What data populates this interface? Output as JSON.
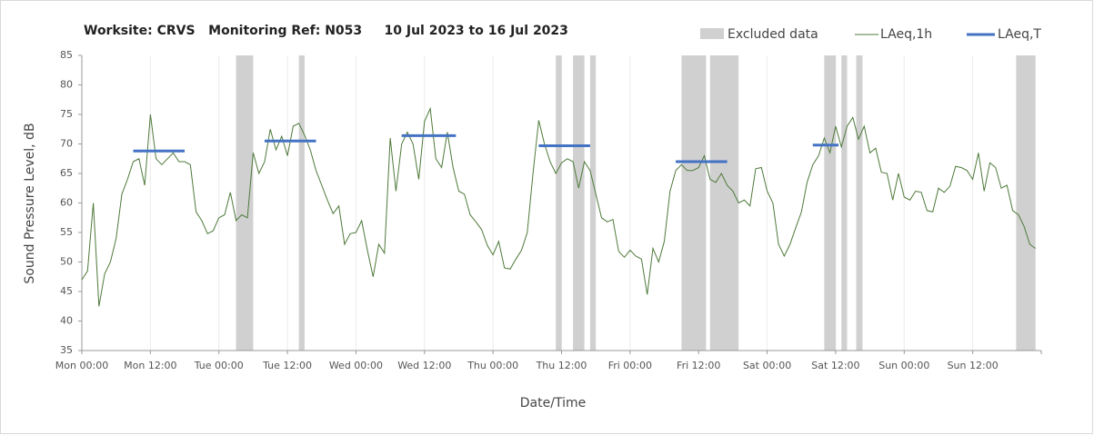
{
  "chart_data": {
    "type": "line",
    "title": "Worksite: CRVS   Monitoring Ref: N053     10 Jul 2023 to 16 Jul 2023",
    "x_label": "Date/Time",
    "y_label": "Sound Pressure Level, dB",
    "xlim": [
      0,
      168
    ],
    "ylim": [
      35,
      85
    ],
    "xticks": [
      {
        "value": 0,
        "label": "Mon 00:00"
      },
      {
        "value": 12,
        "label": "Mon 12:00"
      },
      {
        "value": 24,
        "label": "Tue 00:00"
      },
      {
        "value": 36,
        "label": "Tue 12:00"
      },
      {
        "value": 48,
        "label": "Wed 00:00"
      },
      {
        "value": 60,
        "label": "Wed 12:00"
      },
      {
        "value": 72,
        "label": "Thu 00:00"
      },
      {
        "value": 84,
        "label": "Thu 12:00"
      },
      {
        "value": 96,
        "label": "Fri 00:00"
      },
      {
        "value": 108,
        "label": "Fri 12:00"
      },
      {
        "value": 120,
        "label": "Sat 00:00"
      },
      {
        "value": 132,
        "label": "Sat 12:00"
      },
      {
        "value": 144,
        "label": "Sun 00:00"
      },
      {
        "value": 156,
        "label": "Sun 12:00"
      }
    ],
    "yticks": [
      35,
      40,
      45,
      50,
      55,
      60,
      65,
      70,
      75,
      80,
      85
    ],
    "grid": true,
    "legend": "top-right",
    "series": [
      {
        "name": "LAeq,1h",
        "color": "#4e7a3a",
        "x": [
          0,
          1,
          2,
          3,
          4,
          5,
          6,
          7,
          8,
          9,
          10,
          11,
          12,
          13,
          14,
          15,
          16,
          17,
          18,
          19,
          20,
          21,
          22,
          23,
          24,
          25,
          26,
          27,
          28,
          29,
          30,
          31,
          32,
          33,
          34,
          35,
          36,
          37,
          38,
          39,
          40,
          41,
          42,
          43,
          44,
          45,
          46,
          47,
          48,
          49,
          50,
          51,
          52,
          53,
          54,
          55,
          56,
          57,
          58,
          59,
          60,
          61,
          62,
          63,
          64,
          65,
          66,
          67,
          68,
          69,
          70,
          71,
          72,
          73,
          74,
          75,
          76,
          77,
          78,
          79,
          80,
          81,
          82,
          83,
          84,
          85,
          86,
          87,
          88,
          89,
          90,
          91,
          92,
          93,
          94,
          95,
          96,
          97,
          98,
          99,
          100,
          101,
          102,
          103,
          104,
          105,
          106,
          107,
          108,
          109,
          110,
          111,
          112,
          113,
          114,
          115,
          116,
          117,
          118,
          119,
          120,
          121,
          122,
          123,
          124,
          125,
          126,
          127,
          128,
          129,
          130,
          131,
          132,
          133,
          134,
          135,
          136,
          137,
          138,
          139,
          140,
          141,
          142,
          143,
          144,
          145,
          146,
          147,
          148,
          149,
          150,
          151,
          152,
          153,
          154,
          155,
          156,
          157,
          158,
          159,
          160,
          161,
          162,
          163,
          164,
          165,
          166,
          167
        ],
        "values": [
          47,
          48.5,
          60,
          42.5,
          48,
          50,
          54,
          61.5,
          64,
          67,
          67.5,
          63,
          75,
          67.5,
          66.5,
          67.5,
          68.5,
          67,
          67,
          66.5,
          58.5,
          57,
          54.8,
          55.3,
          57.5,
          58,
          61.8,
          57,
          58,
          57.5,
          68.5,
          65,
          67,
          72.5,
          69,
          71.3,
          68,
          73,
          73.5,
          71.5,
          69,
          65.5,
          63,
          60.5,
          58.2,
          59.5,
          53,
          54.8,
          55,
          57,
          52,
          47.5,
          53,
          51.5,
          71,
          62,
          70,
          72,
          70,
          64,
          73.8,
          76,
          67.5,
          66,
          72,
          66,
          62,
          61.5,
          58,
          56.8,
          55.5,
          52.8,
          51.2,
          53.5,
          49,
          48.8,
          50.5,
          52,
          55,
          65,
          74,
          70,
          67,
          65,
          66.8,
          67.5,
          67,
          62.5,
          67,
          65.5,
          61.5,
          57.5,
          56.8,
          57.2,
          51.8,
          50.8,
          52,
          51,
          50.5,
          44.5,
          52.3,
          50,
          53.5,
          62,
          65.5,
          66.5,
          65.5,
          65.5,
          66,
          68,
          64,
          63.5,
          65,
          63,
          62,
          60,
          60.5,
          59.5,
          65.8,
          66,
          62,
          60,
          53,
          51,
          53,
          55.8,
          58.5,
          63.5,
          66.5,
          68,
          71,
          68.5,
          73,
          69.5,
          73,
          74.5,
          70.8,
          73,
          68.5,
          69.3,
          65.2,
          65,
          60.5,
          65,
          61,
          60.5,
          62,
          61.8,
          58.7,
          58.5,
          62.5,
          61.8,
          62.8,
          66.2,
          66,
          65.5,
          64,
          68.5,
          62,
          66.8,
          66,
          62.5,
          63,
          58.7,
          58,
          56,
          53,
          52.3
        ]
      },
      {
        "name": "Excluded data",
        "color": "#d0d0d0",
        "ranges": [
          [
            27,
            30
          ],
          [
            38,
            39
          ],
          [
            83,
            84
          ],
          [
            86,
            88
          ],
          [
            89,
            90
          ],
          [
            105,
            109.3
          ],
          [
            110,
            115
          ],
          [
            130,
            132
          ],
          [
            133,
            134
          ],
          [
            135.6,
            136.7
          ],
          [
            163.6,
            167
          ]
        ]
      },
      {
        "name": "LAeq,T",
        "color": "#4472c4",
        "segments": [
          {
            "x": [
              9,
              18
            ],
            "value": 68.8
          },
          {
            "x": [
              32,
              41
            ],
            "value": 70.5
          },
          {
            "x": [
              56,
              65.5
            ],
            "value": 71.4
          },
          {
            "x": [
              80,
              89
            ],
            "value": 69.7
          },
          {
            "x": [
              104,
              113
            ],
            "value": 67
          },
          {
            "x": [
              128,
              132.5
            ],
            "value": 69.8
          }
        ]
      }
    ]
  }
}
